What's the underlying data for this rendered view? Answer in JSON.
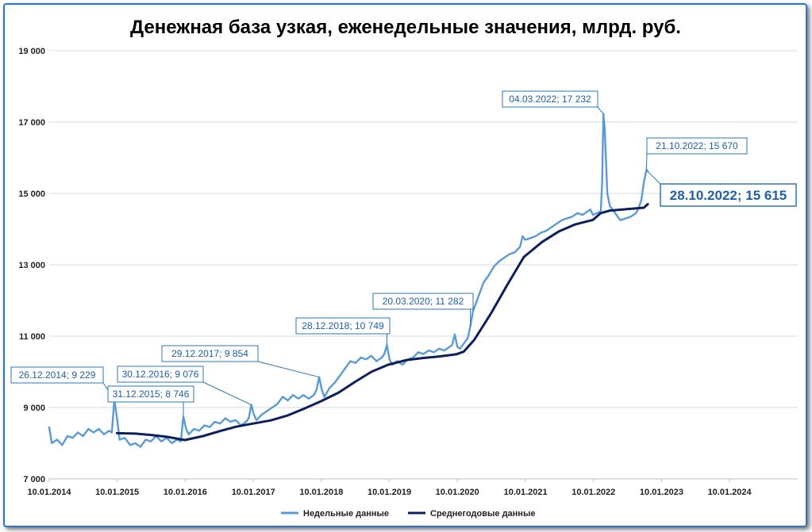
{
  "chart_data": {
    "type": "line",
    "title": "Денежная база узкая, еженедельные значения, млрд. руб.",
    "xlabel": "",
    "ylabel": "",
    "ylim": [
      7000,
      19000
    ],
    "xlim": [
      "2014-01-10",
      "2025-01-10"
    ],
    "y_ticks": [
      "7 000",
      "9 000",
      "11 000",
      "13 000",
      "15 000",
      "17 000",
      "19 000"
    ],
    "y_tick_values": [
      7000,
      9000,
      11000,
      13000,
      15000,
      17000,
      19000
    ],
    "x_ticks": [
      "10.01.2014",
      "10.01.2015",
      "10.01.2016",
      "10.01.2017",
      "10.01.2018",
      "10.01.2019",
      "10.01.2020",
      "10.01.2021",
      "10.01.2022",
      "10.01.2023",
      "10.01.2024"
    ],
    "x_tick_dates": [
      "2014-01-10",
      "2015-01-10",
      "2016-01-10",
      "2017-01-10",
      "2018-01-10",
      "2019-01-10",
      "2020-01-10",
      "2021-01-10",
      "2022-01-10",
      "2023-01-10",
      "2024-01-10"
    ],
    "grid": "horizontal",
    "legend": "bottom",
    "colors": {
      "weekly": "#5b9bd5",
      "average": "#0d1f5c",
      "annotation": "#2e75b6"
    },
    "series": [
      {
        "name": "Недельные данные",
        "points": [
          [
            "2014-01-10",
            8450
          ],
          [
            "2014-01-24",
            8000
          ],
          [
            "2014-02-21",
            8100
          ],
          [
            "2014-03-21",
            7950
          ],
          [
            "2014-04-18",
            8200
          ],
          [
            "2014-05-16",
            8150
          ],
          [
            "2014-06-13",
            8300
          ],
          [
            "2014-07-11",
            8200
          ],
          [
            "2014-08-08",
            8400
          ],
          [
            "2014-09-05",
            8300
          ],
          [
            "2014-10-03",
            8400
          ],
          [
            "2014-10-31",
            8250
          ],
          [
            "2014-11-28",
            8350
          ],
          [
            "2014-12-12",
            8300
          ],
          [
            "2014-12-26",
            9229
          ],
          [
            "2015-01-09",
            8700
          ],
          [
            "2015-01-23",
            8100
          ],
          [
            "2015-02-20",
            8150
          ],
          [
            "2015-03-20",
            7950
          ],
          [
            "2015-04-17",
            8000
          ],
          [
            "2015-05-15",
            7900
          ],
          [
            "2015-06-12",
            8100
          ],
          [
            "2015-07-10",
            8050
          ],
          [
            "2015-08-07",
            8200
          ],
          [
            "2015-09-04",
            8050
          ],
          [
            "2015-10-02",
            8150
          ],
          [
            "2015-10-30",
            8000
          ],
          [
            "2015-11-27",
            8100
          ],
          [
            "2015-12-18",
            8050
          ],
          [
            "2015-12-31",
            8746
          ],
          [
            "2016-01-15",
            8400
          ],
          [
            "2016-01-29",
            8250
          ],
          [
            "2016-02-26",
            8400
          ],
          [
            "2016-03-25",
            8350
          ],
          [
            "2016-04-22",
            8500
          ],
          [
            "2016-05-20",
            8450
          ],
          [
            "2016-06-17",
            8600
          ],
          [
            "2016-07-15",
            8550
          ],
          [
            "2016-08-12",
            8700
          ],
          [
            "2016-09-09",
            8600
          ],
          [
            "2016-10-07",
            8650
          ],
          [
            "2016-11-04",
            8500
          ],
          [
            "2016-12-02",
            8600
          ],
          [
            "2016-12-16",
            8700
          ],
          [
            "2016-12-30",
            9076
          ],
          [
            "2017-01-13",
            8800
          ],
          [
            "2017-01-27",
            8650
          ],
          [
            "2017-02-24",
            8800
          ],
          [
            "2017-03-24",
            8900
          ],
          [
            "2017-04-21",
            9000
          ],
          [
            "2017-05-19",
            9100
          ],
          [
            "2017-06-16",
            9300
          ],
          [
            "2017-07-14",
            9200
          ],
          [
            "2017-08-11",
            9350
          ],
          [
            "2017-09-08",
            9250
          ],
          [
            "2017-10-06",
            9350
          ],
          [
            "2017-11-03",
            9250
          ],
          [
            "2017-12-01",
            9350
          ],
          [
            "2017-12-15",
            9500
          ],
          [
            "2017-12-29",
            9854
          ],
          [
            "2018-01-12",
            9500
          ],
          [
            "2018-01-26",
            9300
          ],
          [
            "2018-02-23",
            9550
          ],
          [
            "2018-03-23",
            9700
          ],
          [
            "2018-04-20",
            9900
          ],
          [
            "2018-05-18",
            10100
          ],
          [
            "2018-06-15",
            10300
          ],
          [
            "2018-07-13",
            10250
          ],
          [
            "2018-08-10",
            10400
          ],
          [
            "2018-09-07",
            10350
          ],
          [
            "2018-10-05",
            10450
          ],
          [
            "2018-11-02",
            10300
          ],
          [
            "2018-11-30",
            10400
          ],
          [
            "2018-12-14",
            10500
          ],
          [
            "2018-12-28",
            10749
          ],
          [
            "2019-01-11",
            10350
          ],
          [
            "2019-01-25",
            10200
          ],
          [
            "2019-02-22",
            10300
          ],
          [
            "2019-03-22",
            10200
          ],
          [
            "2019-04-19",
            10350
          ],
          [
            "2019-05-17",
            10400
          ],
          [
            "2019-06-14",
            10550
          ],
          [
            "2019-07-12",
            10500
          ],
          [
            "2019-08-09",
            10600
          ],
          [
            "2019-09-06",
            10550
          ],
          [
            "2019-10-04",
            10650
          ],
          [
            "2019-11-01",
            10600
          ],
          [
            "2019-11-29",
            10700
          ],
          [
            "2019-12-13",
            10750
          ],
          [
            "2019-12-27",
            11050
          ],
          [
            "2020-01-10",
            10700
          ],
          [
            "2020-01-24",
            10650
          ],
          [
            "2020-02-21",
            10850
          ],
          [
            "2020-03-06",
            10950
          ],
          [
            "2020-03-20",
            11282
          ],
          [
            "2020-04-03",
            11700
          ],
          [
            "2020-05-01",
            12100
          ],
          [
            "2020-05-29",
            12500
          ],
          [
            "2020-06-26",
            12700
          ],
          [
            "2020-07-24",
            12950
          ],
          [
            "2020-08-21",
            13100
          ],
          [
            "2020-09-18",
            13200
          ],
          [
            "2020-10-16",
            13300
          ],
          [
            "2020-11-13",
            13350
          ],
          [
            "2020-12-11",
            13500
          ],
          [
            "2020-12-25",
            13800
          ],
          [
            "2021-01-08",
            13700
          ],
          [
            "2021-02-05",
            13750
          ],
          [
            "2021-03-05",
            13800
          ],
          [
            "2021-04-02",
            13900
          ],
          [
            "2021-04-30",
            13950
          ],
          [
            "2021-05-28",
            14050
          ],
          [
            "2021-06-25",
            14150
          ],
          [
            "2021-07-23",
            14250
          ],
          [
            "2021-08-20",
            14300
          ],
          [
            "2021-09-17",
            14350
          ],
          [
            "2021-10-15",
            14450
          ],
          [
            "2021-11-12",
            14400
          ],
          [
            "2021-12-10",
            14500
          ],
          [
            "2021-12-24",
            14550
          ],
          [
            "2022-01-07",
            14400
          ],
          [
            "2022-01-28",
            14450
          ],
          [
            "2022-02-18",
            14500
          ],
          [
            "2022-02-25",
            15300
          ],
          [
            "2022-03-04",
            17232
          ],
          [
            "2022-03-11",
            16800
          ],
          [
            "2022-03-18",
            15900
          ],
          [
            "2022-03-25",
            15000
          ],
          [
            "2022-04-08",
            14650
          ],
          [
            "2022-05-06",
            14450
          ],
          [
            "2022-06-03",
            14250
          ],
          [
            "2022-07-01",
            14300
          ],
          [
            "2022-07-29",
            14350
          ],
          [
            "2022-08-26",
            14450
          ],
          [
            "2022-09-09",
            14600
          ],
          [
            "2022-09-23",
            14800
          ],
          [
            "2022-10-07",
            15300
          ],
          [
            "2022-10-21",
            15670
          ],
          [
            "2022-10-28",
            15615
          ]
        ]
      },
      {
        "name": "Среднегодовые данные",
        "points": [
          [
            "2015-01-09",
            8280
          ],
          [
            "2015-04-17",
            8270
          ],
          [
            "2015-07-10",
            8230
          ],
          [
            "2015-10-02",
            8180
          ],
          [
            "2016-01-08",
            8090
          ],
          [
            "2016-04-15",
            8200
          ],
          [
            "2016-07-15",
            8340
          ],
          [
            "2016-10-07",
            8460
          ],
          [
            "2017-01-06",
            8550
          ],
          [
            "2017-04-14",
            8640
          ],
          [
            "2017-07-14",
            8780
          ],
          [
            "2017-10-06",
            8960
          ],
          [
            "2018-01-05",
            9170
          ],
          [
            "2018-04-13",
            9420
          ],
          [
            "2018-07-13",
            9730
          ],
          [
            "2018-10-05",
            10000
          ],
          [
            "2019-01-04",
            10200
          ],
          [
            "2019-04-12",
            10330
          ],
          [
            "2019-07-12",
            10390
          ],
          [
            "2019-10-04",
            10430
          ],
          [
            "2020-01-03",
            10490
          ],
          [
            "2020-02-14",
            10570
          ],
          [
            "2020-04-10",
            10900
          ],
          [
            "2020-07-10",
            11650
          ],
          [
            "2020-10-02",
            12420
          ],
          [
            "2021-01-01",
            13220
          ],
          [
            "2021-04-09",
            13640
          ],
          [
            "2021-07-09",
            13940
          ],
          [
            "2021-10-01",
            14130
          ],
          [
            "2022-01-07",
            14260
          ],
          [
            "2022-02-18",
            14450
          ],
          [
            "2022-04-08",
            14520
          ],
          [
            "2022-07-08",
            14560
          ],
          [
            "2022-10-07",
            14600
          ],
          [
            "2022-10-28",
            14700
          ]
        ]
      }
    ],
    "annotations": [
      {
        "label": "26.12.2014; 9 229",
        "date": "2014-12-26",
        "value": 9229
      },
      {
        "label": "31.12.2015; 8 746",
        "date": "2015-12-31",
        "value": 8746
      },
      {
        "label": "30.12.2016; 9 076",
        "date": "2016-12-30",
        "value": 9076
      },
      {
        "label": "29.12.2017; 9 854",
        "date": "2017-12-29",
        "value": 9854
      },
      {
        "label": "28.12.2018; 10 749",
        "date": "2018-12-28",
        "value": 10749
      },
      {
        "label": "20.03.2020; 11 282",
        "date": "2020-03-20",
        "value": 11282
      },
      {
        "label": "04.03.2022; 17 232",
        "date": "2022-03-04",
        "value": 17232
      },
      {
        "label": "21.10.2022; 15 670",
        "date": "2022-10-21",
        "value": 15670
      },
      {
        "label": "28.10.2022; 15 615",
        "date": "2022-10-28",
        "value": 15615,
        "emphasis": true
      }
    ]
  }
}
